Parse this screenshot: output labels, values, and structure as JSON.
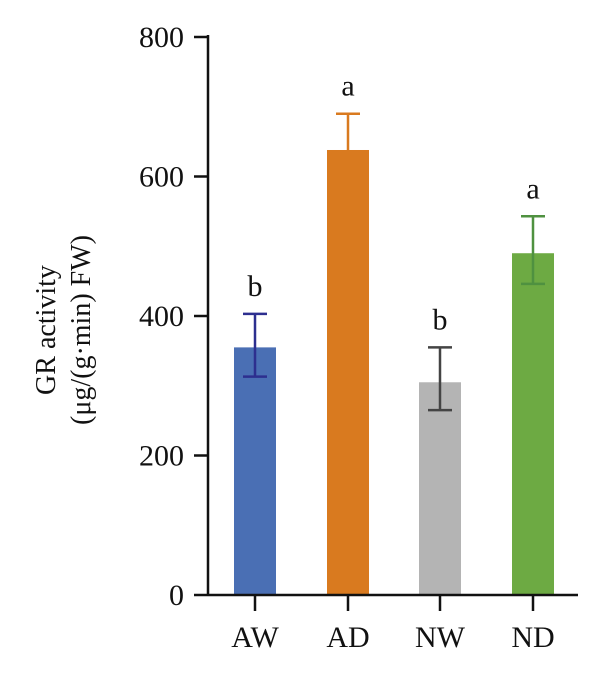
{
  "chart_data": {
    "type": "bar",
    "categories": [
      "AW",
      "AD",
      "NW",
      "ND"
    ],
    "values": [
      355,
      638,
      305,
      490
    ],
    "error_plus": [
      48,
      52,
      50,
      53
    ],
    "error_minus": [
      42,
      0,
      40,
      44
    ],
    "significance": [
      "b",
      "a",
      "b",
      "a"
    ],
    "colors": [
      "#4a6fb4",
      "#d97a1f",
      "#b4b4b4",
      "#6daa43"
    ],
    "error_colors": [
      "#2d2f8f",
      "#d97a1f",
      "#444444",
      "#4f9140"
    ],
    "ylabel_line1": "GR activity",
    "ylabel_line2": "(μg/(g·min) FW)",
    "yticks": [
      "0",
      "200",
      "400",
      "600",
      "800"
    ],
    "ylim": [
      0,
      800
    ],
    "grid": false
  }
}
